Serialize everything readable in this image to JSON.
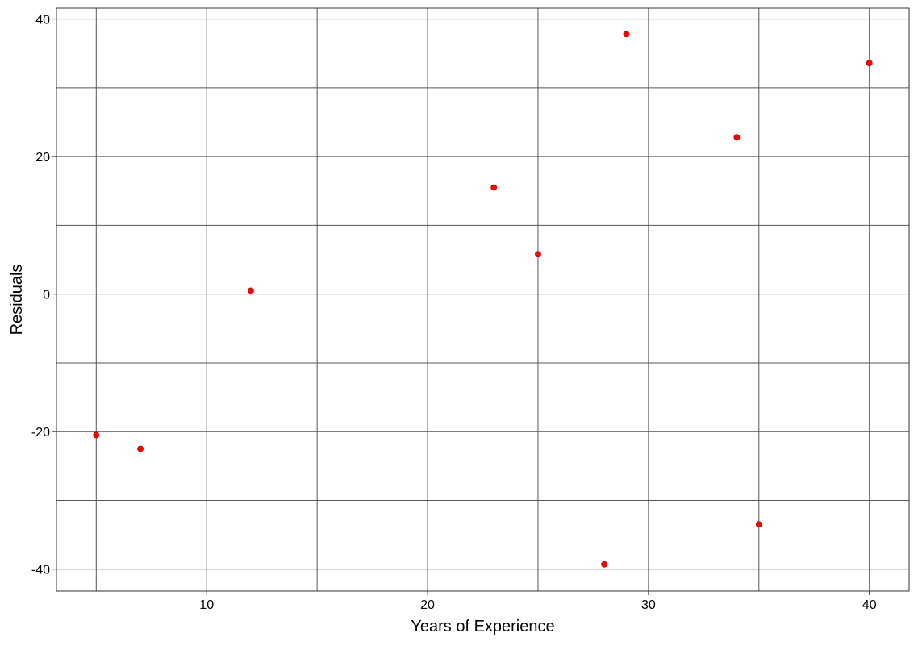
{
  "chart_data": {
    "type": "scatter",
    "title": "",
    "xlabel": "Years of Experience",
    "ylabel": "Residuals",
    "xlim": [
      3.2,
      41.8
    ],
    "ylim": [
      -43.2,
      41.6
    ],
    "x_ticks": [
      10,
      20,
      30,
      40
    ],
    "y_ticks": [
      -40,
      -20,
      0,
      20,
      40
    ],
    "x_minor_grid": [
      5,
      15,
      25,
      35
    ],
    "y_minor_grid": [
      -30,
      -10,
      10,
      30
    ],
    "grid": true,
    "legend": "none",
    "point_color": "#ff0000",
    "series": [
      {
        "points": [
          {
            "x": 5,
            "y": -20.5
          },
          {
            "x": 7,
            "y": -22.5
          },
          {
            "x": 12,
            "y": 0.5
          },
          {
            "x": 23,
            "y": 15.5
          },
          {
            "x": 25,
            "y": 5.8
          },
          {
            "x": 28,
            "y": -39.3
          },
          {
            "x": 29,
            "y": 37.8
          },
          {
            "x": 34,
            "y": 22.8
          },
          {
            "x": 35,
            "y": -33.5
          },
          {
            "x": 40,
            "y": 33.6
          }
        ]
      }
    ]
  }
}
